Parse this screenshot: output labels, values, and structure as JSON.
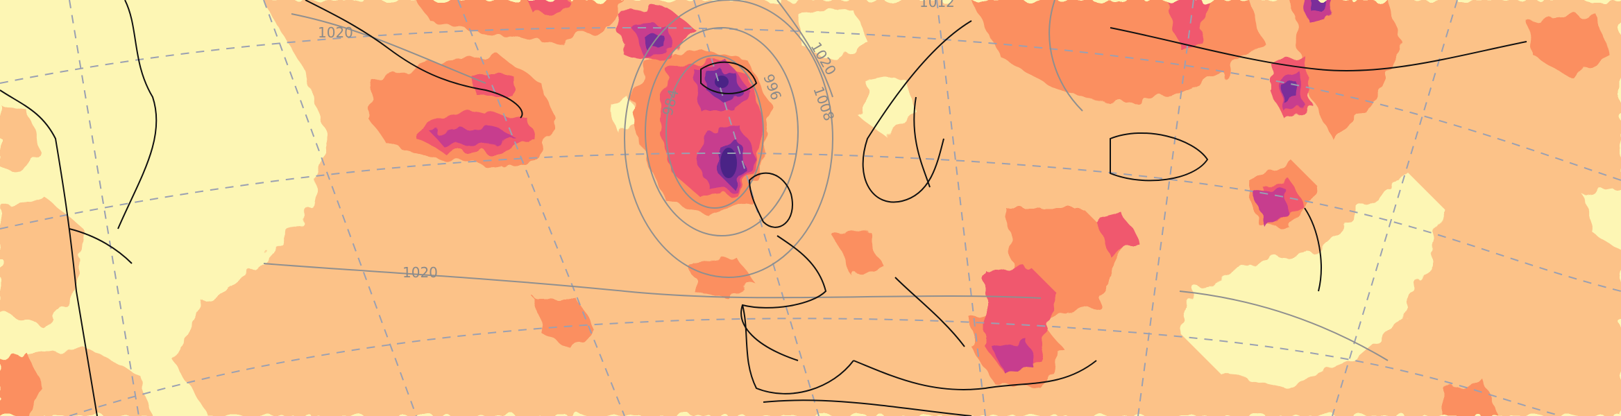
{
  "map": {
    "isobar_labels": [
      {
        "id": "1020-greenland",
        "text": "1020"
      },
      {
        "id": "1012-north",
        "text": "1012"
      },
      {
        "id": "1020-norway",
        "text": "1020"
      },
      {
        "id": "996",
        "text": "996"
      },
      {
        "id": "1008",
        "text": "1008"
      },
      {
        "id": "984",
        "text": "984"
      },
      {
        "id": "1020-atlantic",
        "text": "1020"
      }
    ],
    "colors": {
      "background": "#fdf6b4",
      "low": "#fcc288",
      "medium": "#fb8f60",
      "high": "#f0586e",
      "very_high": "#c73d8e",
      "extreme": "#7a2f9a",
      "max": "#4a2386",
      "coast": "#111111",
      "isobar": "#8f8f8f",
      "graticule": "#9aa0b2"
    }
  }
}
